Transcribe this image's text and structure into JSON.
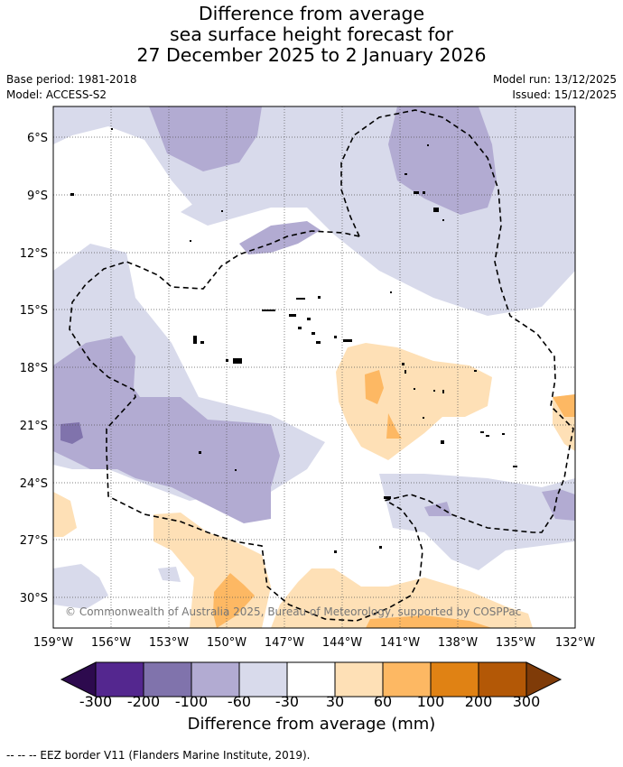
{
  "title": {
    "line1": "Difference from average",
    "line2": "sea surface height forecast for",
    "line3": "27 December 2025 to 2 January 2026"
  },
  "meta": {
    "base_period": "Base period: 1981-2018",
    "model": "Model: ACCESS-S2",
    "model_run": "Model run: 13/12/2025",
    "issued": "Issued: 15/12/2025"
  },
  "map": {
    "lat_labels": [
      "6°S",
      "9°S",
      "12°S",
      "15°S",
      "18°S",
      "21°S",
      "24°S",
      "27°S",
      "30°S"
    ],
    "lon_labels": [
      "159°W",
      "156°W",
      "153°W",
      "150°W",
      "147°W",
      "144°W",
      "141°W",
      "138°W",
      "135°W",
      "132°W"
    ],
    "copyright": "© Commonwealth of Australia 2025, Bureau of Meteorology, supported by COSPPac"
  },
  "colorbar": {
    "label": "Difference from average (mm)",
    "ticks": [
      "-300",
      "-200",
      "-100",
      "-60",
      "-30",
      "30",
      "60",
      "100",
      "200",
      "300"
    ],
    "colors": {
      "under": "#2d0a4e",
      "neg300": "#54278f",
      "neg200": "#8073ac",
      "neg100": "#b2abd2",
      "neg60": "#d8daeb",
      "neutral": "#ffffff",
      "pos30": "#fee0b6",
      "pos60": "#fdb863",
      "pos100": "#e08214",
      "pos200": "#b35806",
      "over": "#7f3b08"
    }
  },
  "footnote": "-- -- -- EEZ border V11 (Flanders Marine Institute, 2019)."
}
